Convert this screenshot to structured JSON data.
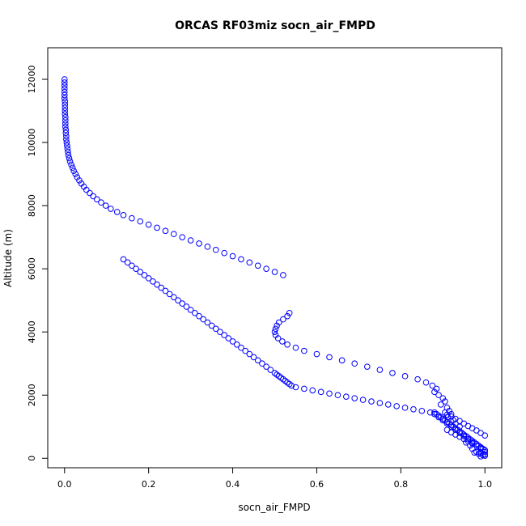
{
  "chart_data": {
    "type": "scatter",
    "title": "ORCAS RF03miz socn_air_FMPD",
    "xlabel": "socn_air_FMPD",
    "ylabel": "Altitude (m)",
    "xlim": [
      -0.04,
      1.04
    ],
    "ylim": [
      -300,
      13000
    ],
    "xticks": [
      0.0,
      0.2,
      0.4,
      0.6,
      0.8,
      1.0
    ],
    "xtick_labels": [
      "0.0",
      "0.2",
      "0.4",
      "0.6",
      "0.8",
      "1.0"
    ],
    "yticks": [
      0,
      2000,
      4000,
      6000,
      8000,
      10000,
      12000
    ],
    "ytick_labels": [
      "0",
      "2000",
      "4000",
      "6000",
      "8000",
      "10000",
      "12000"
    ],
    "marker": "open-circle",
    "color": "#0000ff",
    "grid": false,
    "legend": "none",
    "series": [
      {
        "x": [
          0.0,
          0.0,
          0.0,
          0.0,
          0.0,
          0.0,
          0.0,
          0.001,
          0.001,
          0.001,
          0.001,
          0.001,
          0.002,
          0.002,
          0.002,
          0.002,
          0.003,
          0.003,
          0.004,
          0.004,
          0.005,
          0.006,
          0.007,
          0.008,
          0.009,
          0.011,
          0.013,
          0.016,
          0.019,
          0.022,
          0.026,
          0.03,
          0.035,
          0.04,
          0.046,
          0.052,
          0.06,
          0.068,
          0.077,
          0.087,
          0.098,
          0.11,
          0.125,
          0.14,
          0.16,
          0.18,
          0.2,
          0.22,
          0.24,
          0.26,
          0.28,
          0.3,
          0.32,
          0.34,
          0.36,
          0.38,
          0.4,
          0.42,
          0.44,
          0.46,
          0.48,
          0.5,
          0.52,
          0.535,
          0.53,
          0.52,
          0.51,
          0.505,
          0.502,
          0.5,
          0.502,
          0.508,
          0.518,
          0.53,
          0.55,
          0.57,
          0.6,
          0.63,
          0.66,
          0.69,
          0.72,
          0.75,
          0.78,
          0.81,
          0.84,
          0.86,
          0.875,
          0.885,
          0.88,
          0.89,
          0.9,
          0.905,
          0.895,
          0.91,
          0.915,
          0.92,
          0.912,
          0.925,
          0.93,
          0.94,
          0.935,
          0.945,
          0.95,
          0.96,
          0.955,
          0.965,
          0.97,
          0.98,
          0.975,
          0.99,
          0.985,
          1.0,
          0.995,
          1.0,
          0.99
        ],
        "y": [
          12000,
          11900,
          11800,
          11700,
          11600,
          11500,
          11400,
          11300,
          11200,
          11100,
          11000,
          10900,
          10800,
          10700,
          10600,
          10500,
          10400,
          10300,
          10200,
          10100,
          10000,
          9900,
          9800,
          9700,
          9600,
          9500,
          9400,
          9300,
          9200,
          9100,
          9000,
          8900,
          8800,
          8700,
          8600,
          8500,
          8400,
          8300,
          8200,
          8100,
          8000,
          7900,
          7800,
          7700,
          7600,
          7500,
          7400,
          7300,
          7200,
          7100,
          7000,
          6900,
          6800,
          6700,
          6600,
          6500,
          6400,
          6300,
          6200,
          6100,
          6000,
          5900,
          5800,
          4600,
          4500,
          4400,
          4300,
          4200,
          4100,
          4000,
          3900,
          3800,
          3700,
          3600,
          3500,
          3400,
          3300,
          3200,
          3100,
          3000,
          2900,
          2800,
          2700,
          2600,
          2500,
          2400,
          2300,
          2200,
          2100,
          2000,
          1900,
          1800,
          1700,
          1600,
          1500,
          1400,
          1300,
          1200,
          1100,
          1000,
          900,
          800,
          700,
          600,
          500,
          400,
          300,
          200,
          180,
          160,
          140,
          120,
          100,
          80,
          60
        ]
      },
      {
        "x": [
          0.14,
          0.15,
          0.16,
          0.17,
          0.18,
          0.19,
          0.2,
          0.21,
          0.22,
          0.23,
          0.24,
          0.25,
          0.26,
          0.27,
          0.28,
          0.29,
          0.3,
          0.31,
          0.32,
          0.33,
          0.34,
          0.35,
          0.36,
          0.37,
          0.38,
          0.39,
          0.4,
          0.41,
          0.42,
          0.43,
          0.44,
          0.45,
          0.46,
          0.47,
          0.48,
          0.49,
          0.5,
          0.505,
          0.51,
          0.515,
          0.52,
          0.525,
          0.53,
          0.535,
          0.54,
          0.55,
          0.57,
          0.59,
          0.61,
          0.63,
          0.65,
          0.67,
          0.69,
          0.71,
          0.73,
          0.75,
          0.77,
          0.79,
          0.81,
          0.83,
          0.85,
          0.87,
          0.88,
          0.89,
          0.9,
          0.91,
          0.92,
          0.93,
          0.94,
          0.95,
          0.96,
          0.97,
          0.98,
          0.99,
          1.0
        ],
        "y": [
          6300,
          6200,
          6100,
          6000,
          5900,
          5800,
          5700,
          5600,
          5500,
          5400,
          5300,
          5200,
          5100,
          5000,
          4900,
          4800,
          4700,
          4600,
          4500,
          4400,
          4300,
          4200,
          4100,
          4000,
          3900,
          3800,
          3700,
          3600,
          3500,
          3400,
          3300,
          3200,
          3100,
          3000,
          2900,
          2800,
          2700,
          2650,
          2600,
          2550,
          2500,
          2450,
          2400,
          2350,
          2300,
          2250,
          2200,
          2150,
          2100,
          2050,
          2000,
          1950,
          1900,
          1850,
          1800,
          1750,
          1700,
          1650,
          1600,
          1550,
          1500,
          1450,
          1400,
          1300,
          1200,
          1100,
          1000,
          900,
          800,
          700,
          600,
          500,
          400,
          300,
          200
        ]
      },
      {
        "x": [
          0.88,
          0.885,
          0.89,
          0.895,
          0.9,
          0.905,
          0.91,
          0.915,
          0.92,
          0.925,
          0.93,
          0.935,
          0.94,
          0.945,
          0.95,
          0.955,
          0.96,
          0.965,
          0.97,
          0.975,
          0.98,
          0.985,
          0.99,
          0.995,
          1.0,
          0.905,
          0.91,
          0.92,
          0.93,
          0.94,
          0.95,
          0.96,
          0.97,
          0.98,
          0.99,
          1.0,
          0.91,
          0.92,
          0.93,
          0.94,
          0.95,
          0.96,
          0.97,
          0.98,
          0.99,
          1.0
        ],
        "y": [
          1450,
          1400,
          1350,
          1300,
          1250,
          1200,
          1150,
          1100,
          1050,
          1000,
          950,
          900,
          850,
          800,
          750,
          700,
          650,
          600,
          550,
          500,
          450,
          400,
          350,
          300,
          250,
          1450,
          1380,
          1320,
          1250,
          1180,
          1100,
          1020,
          950,
          880,
          800,
          720,
          900,
          820,
          750,
          680,
          610,
          540,
          470,
          400,
          330,
          260
        ]
      }
    ]
  }
}
